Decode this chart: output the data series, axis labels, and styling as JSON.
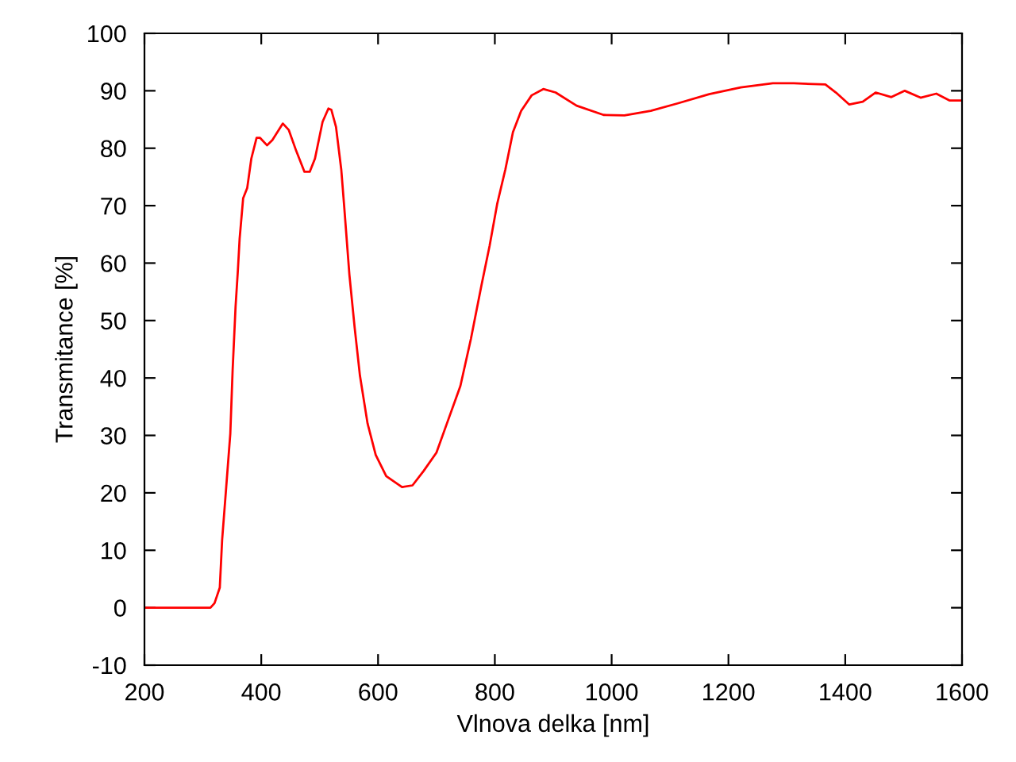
{
  "chart_data": {
    "type": "line",
    "xlabel": "Vlnova delka [nm]",
    "ylabel": "Transmitance [%]",
    "xlim": [
      200,
      1600
    ],
    "ylim": [
      -10,
      100
    ],
    "xticks": [
      200,
      400,
      600,
      800,
      1000,
      1200,
      1400,
      1600
    ],
    "yticks": [
      -10,
      0,
      10,
      20,
      30,
      40,
      50,
      60,
      70,
      80,
      90,
      100
    ],
    "grid": false,
    "series": [
      {
        "color": "#ff0000",
        "x": [
          200,
          313,
          320,
          329,
          333,
          340,
          347,
          351,
          356,
          360,
          363,
          369,
          376,
          383,
          392,
          398,
          410,
          419,
          437,
          447,
          460,
          474,
          483,
          492,
          505,
          515,
          520,
          528,
          537,
          542,
          551,
          560,
          569,
          582,
          596,
          614,
          641,
          659,
          678,
          700,
          718,
          741,
          759,
          777,
          791,
          804,
          818,
          831,
          845,
          863,
          883,
          904,
          940,
          986,
          1022,
          1067,
          1113,
          1167,
          1221,
          1276,
          1312,
          1366,
          1384,
          1407,
          1430,
          1452,
          1479,
          1502,
          1529,
          1556,
          1579,
          1600
        ],
        "values": [
          0,
          0,
          0.8,
          3.5,
          11.8,
          21,
          30.3,
          41.4,
          52.4,
          58.8,
          64.3,
          71.3,
          73.1,
          78.2,
          81.8,
          81.8,
          80.5,
          81.4,
          84.3,
          83.2,
          79.5,
          75.9,
          75.9,
          78.2,
          84.6,
          86.9,
          86.7,
          83.7,
          76.3,
          69.9,
          57.9,
          48.7,
          40.4,
          32.1,
          26.6,
          22.9,
          21.0,
          21.3,
          23.8,
          27.0,
          32.1,
          38.6,
          46.8,
          56.1,
          63.0,
          70.3,
          76.3,
          82.8,
          86.5,
          89.2,
          90.3,
          89.7,
          87.4,
          85.8,
          85.7,
          86.5,
          87.8,
          89.4,
          90.6,
          91.3,
          91.3,
          91.1,
          89.7,
          87.6,
          88.1,
          89.7,
          88.9,
          90.0,
          88.8,
          89.5,
          88.3,
          88.3
        ]
      }
    ]
  }
}
